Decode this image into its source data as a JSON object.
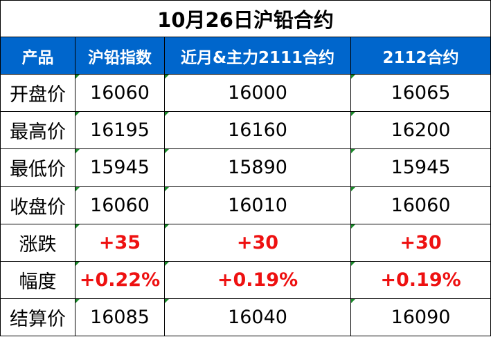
{
  "title": "10月26日沪铅合约",
  "headers": [
    "产品",
    "沪铅指数",
    "近月&主力2111合约",
    "2112合约"
  ],
  "rows": [
    {
      "label": "开盘价",
      "values": [
        "16060",
        "16000",
        "16065"
      ],
      "highlight": false
    },
    {
      "label": "最高价",
      "values": [
        "16195",
        "16160",
        "16200"
      ],
      "highlight": false
    },
    {
      "label": "最低价",
      "values": [
        "15945",
        "15890",
        "15945"
      ],
      "highlight": false
    },
    {
      "label": "收盘价",
      "values": [
        "16060",
        "16010",
        "16060"
      ],
      "highlight": false
    },
    {
      "label": "涨跌",
      "values": [
        "+35",
        "+30",
        "+30"
      ],
      "highlight": true
    },
    {
      "label": "幅度",
      "values": [
        "+0.22%",
        "+0.19%",
        "+0.19%"
      ],
      "highlight": true
    },
    {
      "label": "结算价",
      "values": [
        "16085",
        "16040",
        "16090"
      ],
      "highlight": false
    }
  ],
  "colors": {
    "header_bg": "#0066cc",
    "header_text": "#ffffff",
    "up": "#ee1111",
    "cell_marker": "#1a8a2a"
  }
}
